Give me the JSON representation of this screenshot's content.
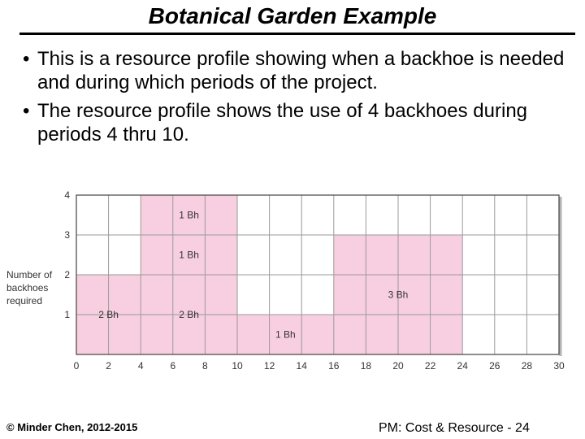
{
  "slide": {
    "title": "Botanical Garden Example",
    "bullets": [
      "This is a resource profile showing when a backhoe is needed and during which periods of the project.",
      "The resource profile shows the use of 4 backhoes during periods 4 thru 10."
    ],
    "bullet_glyph": "•"
  },
  "footer": {
    "left": "© Minder Chen, 2012-2015",
    "right": "PM: Cost & Resource - 24"
  },
  "chart_data": {
    "type": "bar",
    "title": "",
    "xlabel": "",
    "ylabel": "Number of backhoes required",
    "xlim": [
      0,
      30
    ],
    "ylim": [
      0,
      4
    ],
    "x_ticks": [
      0,
      2,
      4,
      6,
      8,
      10,
      12,
      14,
      16,
      18,
      20,
      22,
      24,
      26,
      28,
      30
    ],
    "y_ticks": [
      1,
      2,
      3,
      4
    ],
    "grid": true,
    "bar_color": "#f8cfe0",
    "segments": [
      {
        "x_start": 0,
        "x_end": 4,
        "value": 2,
        "label": "2 Bh"
      },
      {
        "x_start": 4,
        "x_end": 10,
        "value": 4,
        "label": ""
      },
      {
        "x_start": 10,
        "x_end": 16,
        "value": 1,
        "label": "1 Bh"
      },
      {
        "x_start": 16,
        "x_end": 24,
        "value": 3,
        "label": "3 Bh"
      }
    ],
    "stack_labels": [
      {
        "x_start": 4,
        "x_end": 10,
        "y_start": 0,
        "y_end": 2,
        "label": "2 Bh"
      },
      {
        "x_start": 4,
        "x_end": 10,
        "y_start": 2,
        "y_end": 3,
        "label": "1 Bh"
      },
      {
        "x_start": 4,
        "x_end": 10,
        "y_start": 3,
        "y_end": 4,
        "label": "1 Bh"
      }
    ]
  }
}
